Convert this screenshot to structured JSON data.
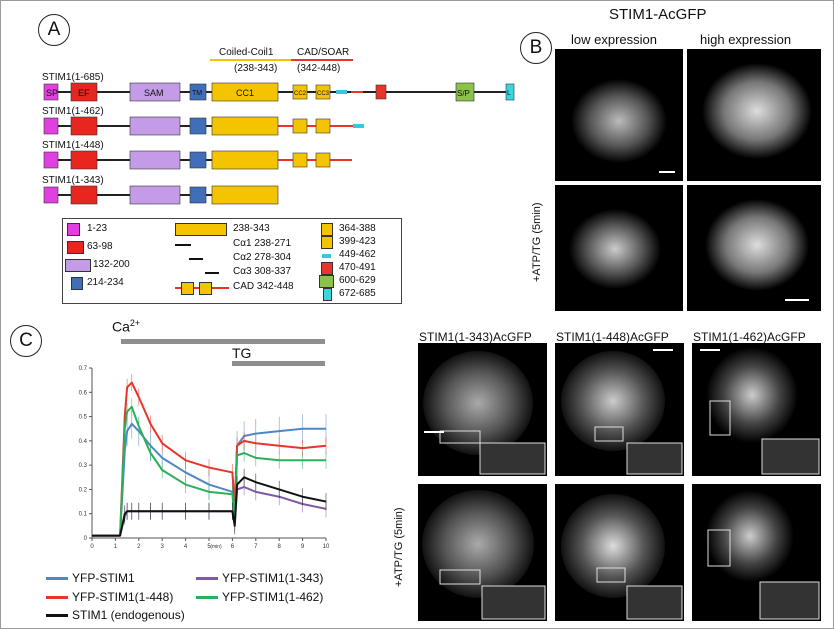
{
  "panel_labels": {
    "a": "A",
    "b": "B",
    "c": "C"
  },
  "domain": {
    "coiled_coil_label": "Coiled-Coil1",
    "coiled_coil_range": "(238-343)",
    "cad_label": "CAD/SOAR",
    "cad_range": "(342-448)",
    "constructs": [
      {
        "name": "STIM1(1-685)"
      },
      {
        "name": "STIM1(1-462)"
      },
      {
        "name": "STIM1(1-448)"
      },
      {
        "name": "STIM1(1-343)"
      }
    ],
    "block_labels": {
      "sp": "SP",
      "ef": "EF",
      "sam": "SAM",
      "tm": "TM",
      "cc1": "CC1",
      "cc2": "CC2",
      "cc3": "CC3",
      "sp_rich": "S/P",
      "l": "L"
    },
    "key": {
      "sp": "1-23",
      "ef": "63-98",
      "sam": "132-200",
      "tm": "214-234",
      "cc1": "238-343",
      "ca1": "Cα1 238-271",
      "ca2": "Cα2 278-304",
      "ca3": "Cα3 308-337",
      "cad": "CAD 342-448",
      "cc2": "364-388",
      "cc3": "399-423",
      "cyan": "449-462",
      "red": "470-491",
      "sprich": "600-629",
      "l": "672-685"
    }
  },
  "images": {
    "title": "STIM1-AcGFP",
    "low": "low expression",
    "high": "high expression",
    "treatment": "+ATP/TG (5min)",
    "trunc_titles": [
      "STIM1(1-343)AcGFP",
      "STIM1(1-448)AcGFP",
      "STIM1(1-462)AcGFP"
    ]
  },
  "chart_data": {
    "type": "line",
    "title": "",
    "xlabel": "(min)",
    "ylabel": "",
    "xlim": [
      0,
      10
    ],
    "ylim": [
      0,
      0.7
    ],
    "xticks": [
      "0",
      "1",
      "2",
      "3",
      "4",
      "5",
      "6",
      "7",
      "8",
      "9",
      "10"
    ],
    "yticks": [
      "0",
      "0.1",
      "0.2",
      "0.3",
      "0.4",
      "0.5",
      "0.6",
      "0.7"
    ],
    "bars": {
      "ca": "Ca",
      "ca_sup": "2+",
      "tg": "TG"
    },
    "series": [
      {
        "name": "YFP-STIM1",
        "color": "#4f86c6",
        "x": [
          0,
          1.2,
          1.4,
          1.5,
          1.7,
          2,
          2.5,
          3,
          4,
          5,
          6,
          6.1,
          6.2,
          6.5,
          7,
          8,
          9,
          10
        ],
        "y": [
          0.01,
          0.01,
          0.36,
          0.44,
          0.47,
          0.44,
          0.38,
          0.33,
          0.27,
          0.22,
          0.19,
          0.09,
          0.38,
          0.42,
          0.43,
          0.44,
          0.45,
          0.45
        ]
      },
      {
        "name": "YFP-STIM1(1-448)",
        "color": "#e8352c",
        "x": [
          0,
          1.2,
          1.4,
          1.5,
          1.7,
          2,
          2.5,
          3,
          4,
          5,
          6,
          6.1,
          6.2,
          6.5,
          7,
          8,
          9,
          10
        ],
        "y": [
          0.01,
          0.01,
          0.5,
          0.62,
          0.64,
          0.58,
          0.47,
          0.39,
          0.32,
          0.29,
          0.27,
          0.13,
          0.38,
          0.4,
          0.39,
          0.38,
          0.37,
          0.38
        ]
      },
      {
        "name": "YFP-STIM1(1-343)",
        "color": "#7e5aa6",
        "x": [
          0,
          1.2,
          1.4,
          1.5,
          1.7,
          2,
          2.5,
          3,
          4,
          5,
          6,
          6.1,
          6.2,
          6.5,
          7,
          8,
          9,
          10
        ],
        "y": [
          0.01,
          0.01,
          0.09,
          0.11,
          0.11,
          0.11,
          0.11,
          0.11,
          0.11,
          0.11,
          0.11,
          0.06,
          0.2,
          0.21,
          0.19,
          0.17,
          0.14,
          0.12
        ]
      },
      {
        "name": "YFP-STIM1(1-462)",
        "color": "#2bb05a",
        "x": [
          0,
          1.2,
          1.4,
          1.5,
          1.7,
          2,
          2.5,
          3,
          4,
          5,
          6,
          6.1,
          6.2,
          6.5,
          7,
          8,
          9,
          10
        ],
        "y": [
          0.01,
          0.01,
          0.45,
          0.52,
          0.54,
          0.46,
          0.35,
          0.28,
          0.22,
          0.19,
          0.18,
          0.08,
          0.34,
          0.35,
          0.33,
          0.32,
          0.32,
          0.32
        ]
      },
      {
        "name": "STIM1 (endogenous)",
        "color": "#111111",
        "x": [
          0,
          1.2,
          1.4,
          1.5,
          1.7,
          2,
          2.5,
          3,
          4,
          5,
          6,
          6.1,
          6.2,
          6.5,
          7,
          8,
          9,
          10
        ],
        "y": [
          0.01,
          0.01,
          0.1,
          0.11,
          0.11,
          0.11,
          0.11,
          0.11,
          0.11,
          0.11,
          0.11,
          0.05,
          0.22,
          0.25,
          0.23,
          0.2,
          0.17,
          0.15
        ]
      }
    ]
  }
}
